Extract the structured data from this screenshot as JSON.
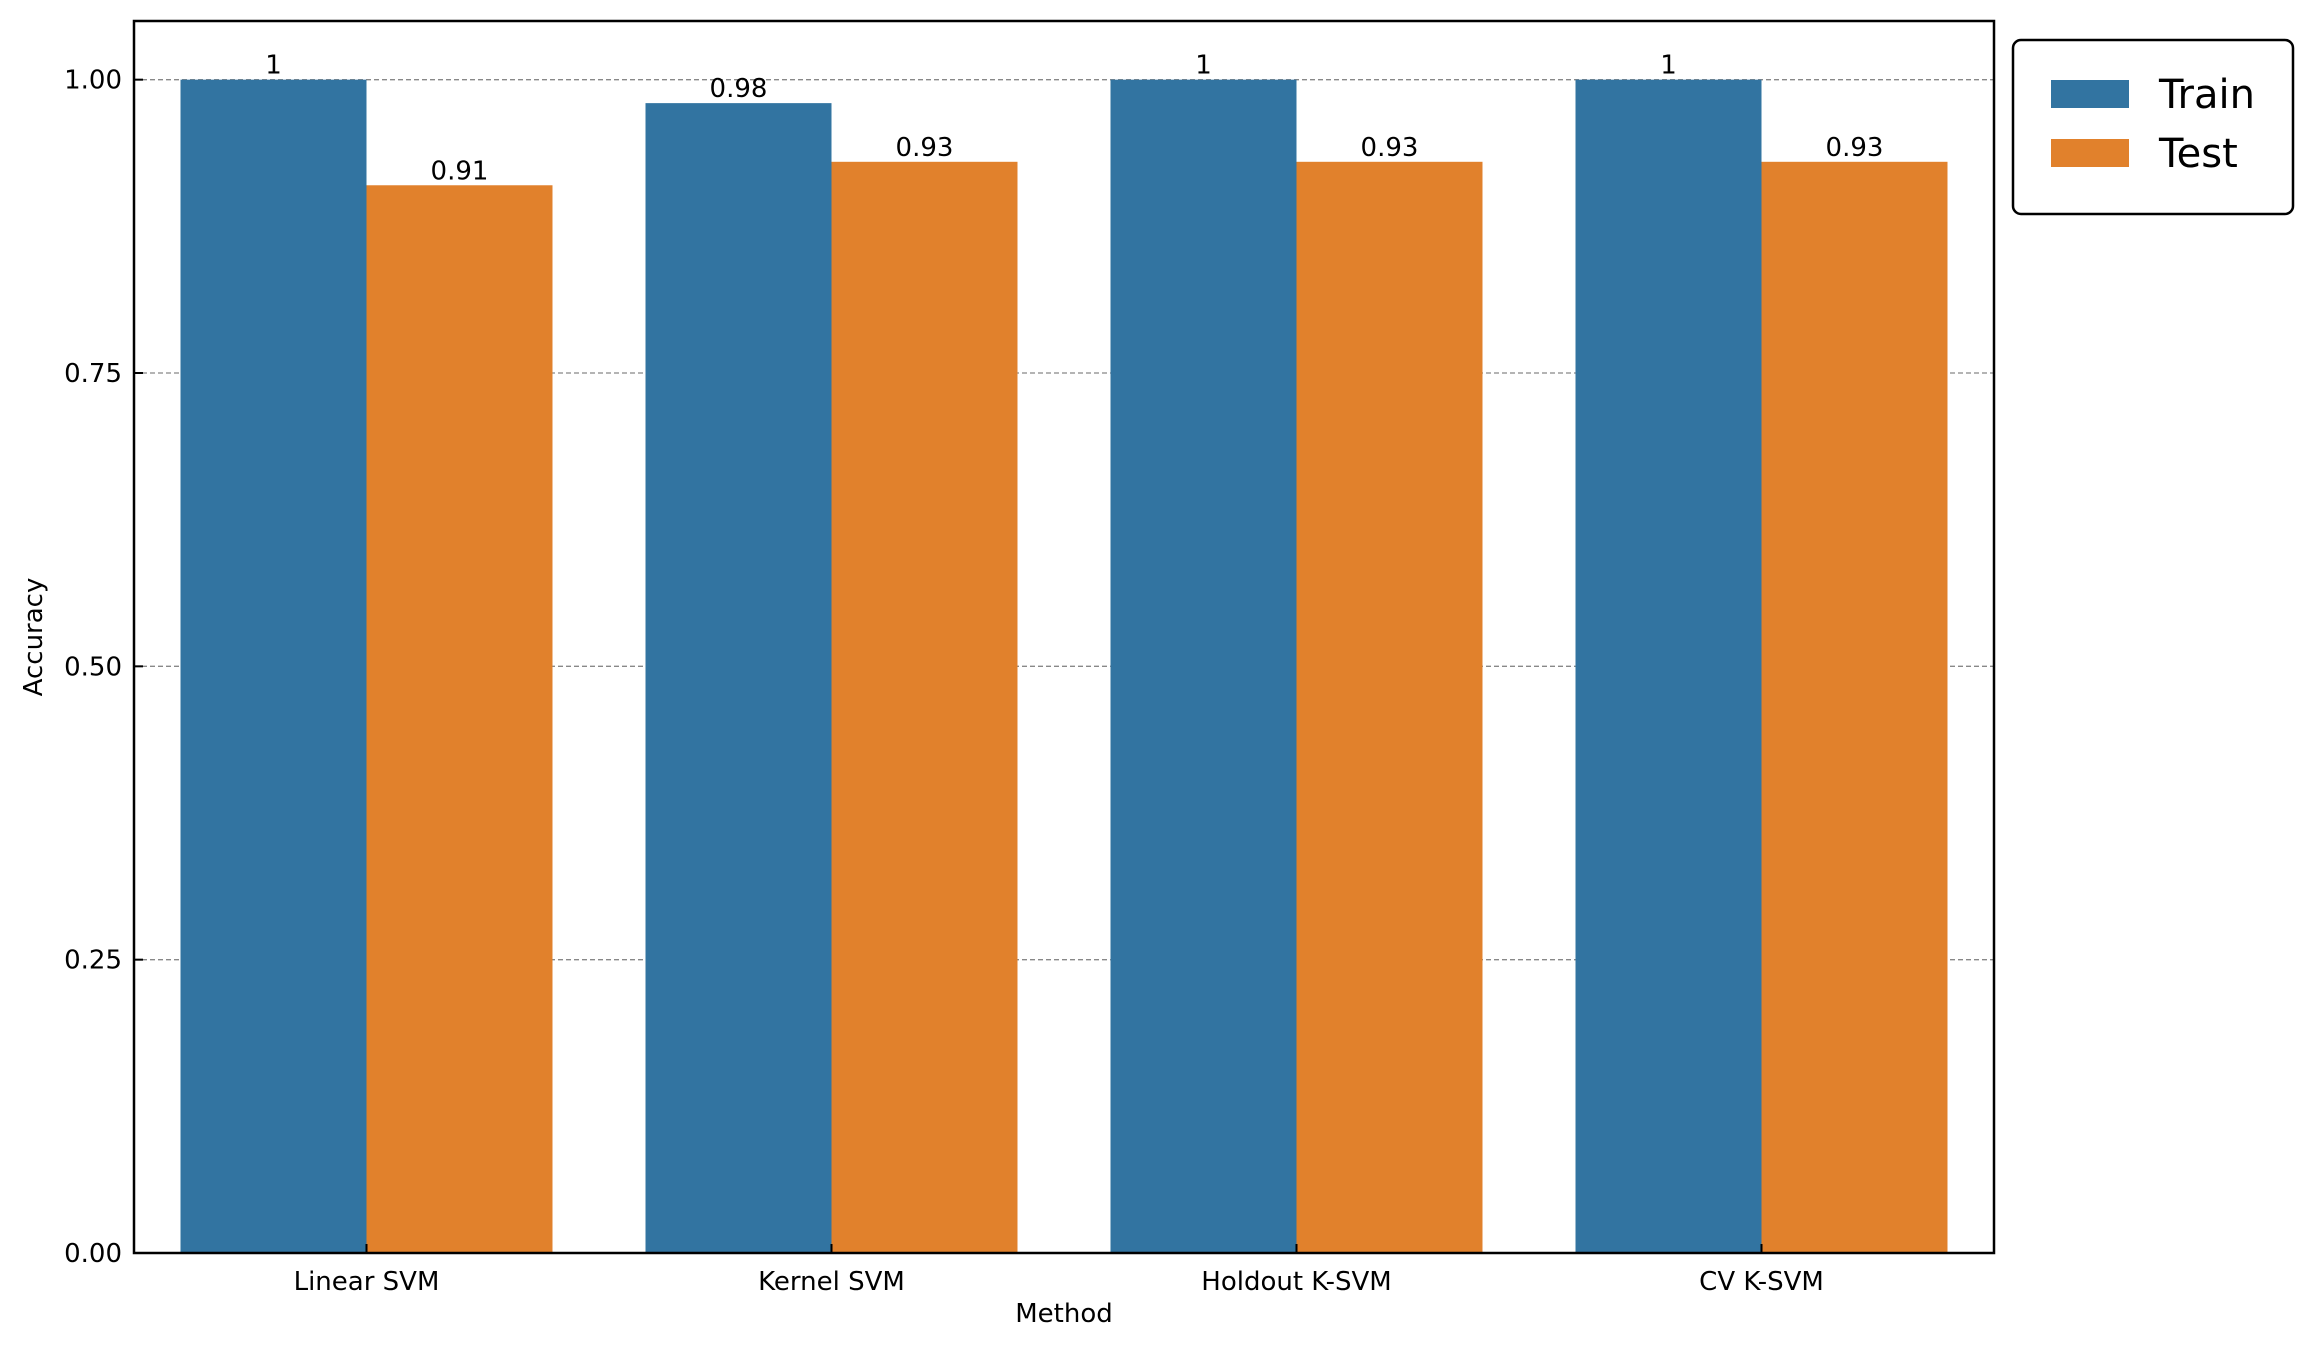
{
  "chart_data": {
    "type": "bar",
    "categories": [
      "Linear SVM",
      "Kernel SVM",
      "Holdout K-SVM",
      "CV K-SVM"
    ],
    "series": [
      {
        "name": "Train",
        "values": [
          1,
          0.98,
          1,
          1
        ],
        "labels": [
          "1",
          "0.98",
          "1",
          "1"
        ],
        "color": "#3274a1"
      },
      {
        "name": "Test",
        "values": [
          0.91,
          0.93,
          0.93,
          0.93
        ],
        "labels": [
          "0.91",
          "0.93",
          "0.93",
          "0.93"
        ],
        "color": "#e1812c"
      }
    ],
    "xlabel": "Method",
    "ylabel": "Accuracy",
    "ylim": [
      0,
      1.05
    ],
    "yticks": [
      0,
      0.25,
      0.5,
      0.75,
      1.0
    ],
    "ytick_labels": [
      "0.00",
      "0.25",
      "0.50",
      "0.75",
      "1.00"
    ],
    "grid": "horizontal-dashed",
    "legend_position": "outside-top-right"
  }
}
